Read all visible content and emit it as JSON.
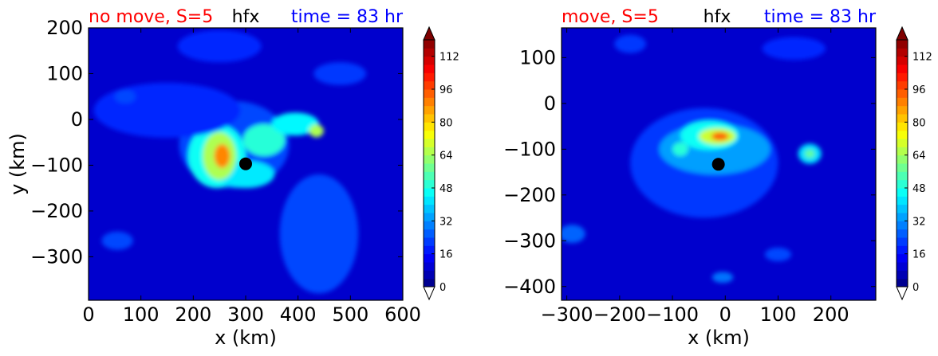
{
  "colors": {
    "field_background": "#0000cd",
    "title_red": "#ff0000",
    "title_blue": "#0000ff",
    "storm_center": "#000000",
    "colormap": "jet"
  },
  "chart_data": [
    {
      "type": "heatmap",
      "title_left": "no move, S=5",
      "title_center": "hfx",
      "title_right": "time = 83 hr",
      "xlabel": "x (km)",
      "ylabel": "y (km)",
      "xlim": [
        0,
        600
      ],
      "ylim": [
        -395,
        200
      ],
      "xticks": [
        0,
        100,
        200,
        300,
        400,
        500,
        600
      ],
      "xtick_labels": [
        "0",
        "100",
        "200",
        "300",
        "400",
        "500",
        "600"
      ],
      "yticks": [
        200,
        100,
        0,
        -100,
        -200,
        -300
      ],
      "ytick_labels": [
        "200",
        "100",
        "0",
        "−100",
        "−200",
        "−300"
      ],
      "storm_center": [
        300,
        -97
      ],
      "colorbar": {
        "min": 0,
        "max": 120,
        "extend": "both",
        "ticks": [
          0,
          16,
          32,
          48,
          64,
          80,
          96,
          112
        ],
        "tick_labels": [
          "0",
          "16",
          "32",
          "48",
          "64",
          "80",
          "96",
          "112"
        ]
      },
      "features": [
        {
          "x": 278,
          "y": -55,
          "rx": 105,
          "ry": 95,
          "value": 10
        },
        {
          "x": 245,
          "y": -80,
          "rx": 55,
          "ry": 70,
          "value": 36
        },
        {
          "x": 335,
          "y": -45,
          "rx": 40,
          "ry": 35,
          "value": 40
        },
        {
          "x": 300,
          "y": -120,
          "rx": 55,
          "ry": 30,
          "value": 32
        },
        {
          "x": 250,
          "y": -80,
          "rx": 32,
          "ry": 52,
          "value": 58
        },
        {
          "x": 255,
          "y": -80,
          "rx": 15,
          "ry": 26,
          "value": 85
        },
        {
          "x": 395,
          "y": -10,
          "rx": 45,
          "ry": 25,
          "value": 34
        },
        {
          "x": 435,
          "y": -25,
          "rx": 14,
          "ry": 14,
          "value": 58
        },
        {
          "x": 440,
          "y": -250,
          "rx": 75,
          "ry": 130,
          "value": 10
        },
        {
          "x": 150,
          "y": 20,
          "rx": 140,
          "ry": 60,
          "value": 6
        },
        {
          "x": 250,
          "y": 160,
          "rx": 80,
          "ry": 35,
          "value": 6
        },
        {
          "x": 480,
          "y": 100,
          "rx": 50,
          "ry": 25,
          "value": 8
        },
        {
          "x": 55,
          "y": -265,
          "rx": 30,
          "ry": 20,
          "value": 10
        },
        {
          "x": 70,
          "y": 50,
          "rx": 20,
          "ry": 15,
          "value": 10
        }
      ]
    },
    {
      "type": "heatmap",
      "title_left": "move, S=5",
      "title_center": "hfx",
      "title_right": "time = 83 hr",
      "xlabel": "x (km)",
      "ylabel": "",
      "xlim": [
        -310,
        285
      ],
      "ylim": [
        -430,
        165
      ],
      "xticks": [
        -300,
        -200,
        -100,
        0,
        100,
        200
      ],
      "xtick_labels": [
        "−300",
        "−200",
        "−100",
        "0",
        "100",
        "200"
      ],
      "yticks": [
        100,
        0,
        -100,
        -200,
        -300,
        -400
      ],
      "ytick_labels": [
        "100",
        "0",
        "−100",
        "−200",
        "−300",
        "−400"
      ],
      "storm_center": [
        -13,
        -133
      ],
      "colorbar": {
        "min": 0,
        "max": 120,
        "extend": "both",
        "ticks": [
          0,
          16,
          32,
          48,
          64,
          80,
          96,
          112
        ],
        "tick_labels": [
          "0",
          "16",
          "32",
          "48",
          "64",
          "80",
          "96",
          "112"
        ]
      },
      "features": [
        {
          "x": -40,
          "y": -130,
          "rx": 140,
          "ry": 120,
          "value": 8
        },
        {
          "x": -20,
          "y": -100,
          "rx": 105,
          "ry": 55,
          "value": 22
        },
        {
          "x": -30,
          "y": -70,
          "rx": 55,
          "ry": 32,
          "value": 36
        },
        {
          "x": -15,
          "y": -72,
          "rx": 35,
          "ry": 18,
          "value": 62
        },
        {
          "x": -10,
          "y": -72,
          "rx": 16,
          "ry": 9,
          "value": 90
        },
        {
          "x": -85,
          "y": -100,
          "rx": 15,
          "ry": 15,
          "value": 40
        },
        {
          "x": 160,
          "y": -110,
          "rx": 22,
          "ry": 22,
          "value": 30
        },
        {
          "x": 160,
          "y": -110,
          "rx": 9,
          "ry": 9,
          "value": 48
        },
        {
          "x": -290,
          "y": -285,
          "rx": 25,
          "ry": 20,
          "value": 14
        },
        {
          "x": -5,
          "y": -380,
          "rx": 20,
          "ry": 12,
          "value": 16
        },
        {
          "x": -180,
          "y": 130,
          "rx": 30,
          "ry": 20,
          "value": 8
        },
        {
          "x": 130,
          "y": 120,
          "rx": 60,
          "ry": 25,
          "value": 6
        },
        {
          "x": 100,
          "y": -330,
          "rx": 25,
          "ry": 15,
          "value": 10
        }
      ]
    }
  ]
}
